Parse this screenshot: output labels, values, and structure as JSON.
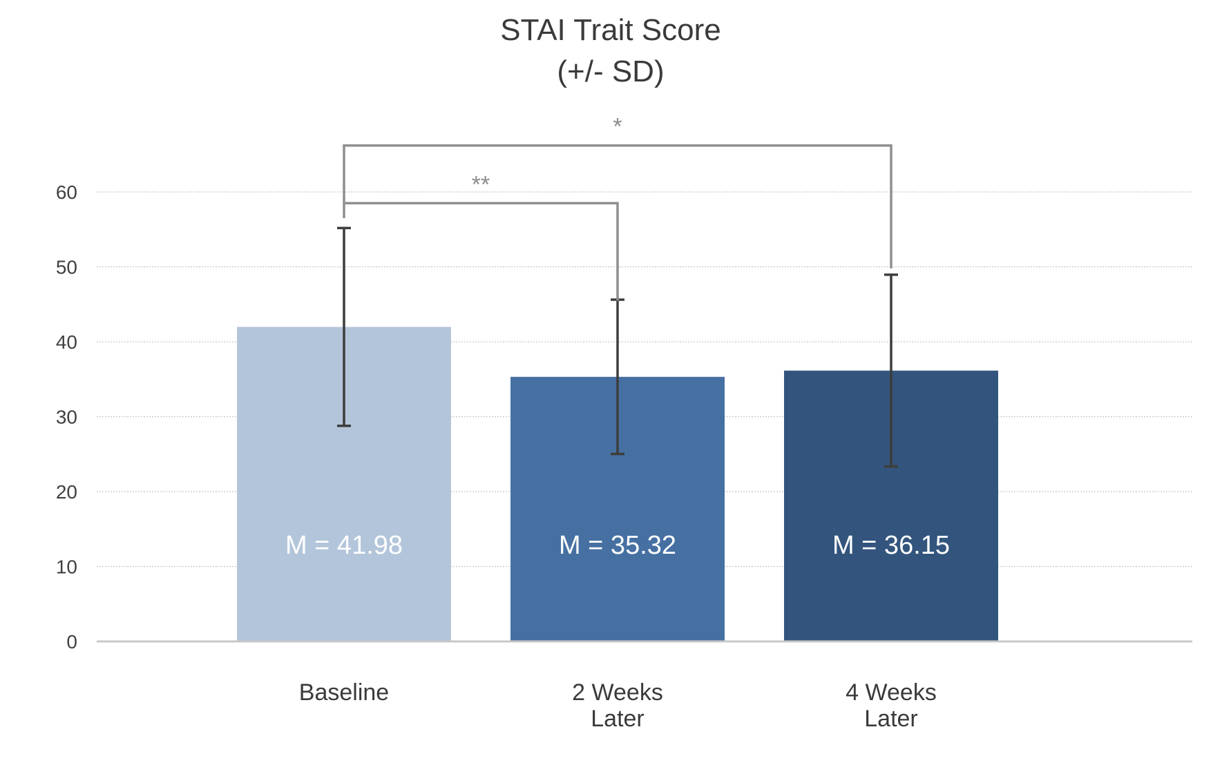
{
  "chart_data": {
    "type": "bar",
    "title": [
      "STAI Trait Score",
      "(+/- SD)"
    ],
    "xlabel": "",
    "ylabel": "",
    "categories": [
      [
        "Baseline"
      ],
      [
        "2 Weeks",
        "Later"
      ],
      [
        "4 Weeks",
        "Later"
      ]
    ],
    "values": [
      41.98,
      35.32,
      36.15
    ],
    "error_sd": [
      13.2,
      10.3,
      12.8
    ],
    "data_labels": [
      "M = 41.98",
      "M = 35.32",
      "M = 36.15"
    ],
    "bar_colors": [
      "#b3c5da",
      "#4670a2",
      "#33557d"
    ],
    "ylim": [
      0,
      60
    ],
    "yticks": [
      0,
      10,
      20,
      30,
      40,
      50,
      60
    ],
    "grid": true,
    "legend": "none",
    "significance": [
      {
        "from": 0,
        "to": 1,
        "label": "**",
        "level": 58.5,
        "left_end": 56.5,
        "right_end": 45.5
      },
      {
        "from": 0,
        "to": 2,
        "label": "*",
        "level": 66.2,
        "left_end": 58.5,
        "right_end": 49.8
      }
    ]
  },
  "colors": {
    "grid": "#c8c8c8",
    "axis": "#c8c8c8",
    "error_bar": "#3d3d3d",
    "bracket": "#8f8f8f"
  }
}
